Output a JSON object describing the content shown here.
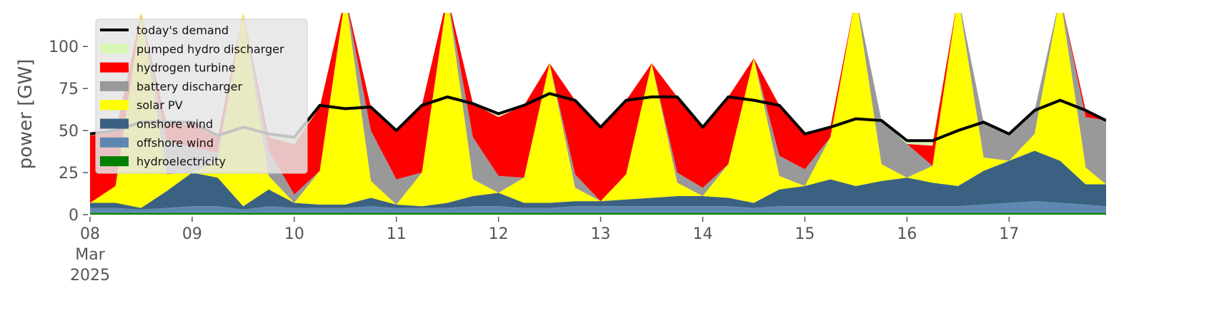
{
  "chart_data": {
    "type": "stacked_area",
    "ylabel": "power [GW]",
    "xlim": [
      8,
      17.95
    ],
    "ylim": [
      0,
      120
    ],
    "xticks": [
      {
        "value": 8,
        "label": "08\nMar\n2025"
      },
      {
        "value": 9,
        "label": "09"
      },
      10,
      11,
      12,
      13,
      14,
      15,
      16,
      17
    ],
    "yticks": [
      0,
      25,
      50,
      75,
      100
    ],
    "legend": "upper left",
    "x": [
      8.0,
      8.25,
      8.5,
      8.75,
      9.0,
      9.25,
      9.5,
      9.75,
      10.0,
      10.25,
      10.5,
      10.75,
      11.0,
      11.25,
      11.5,
      11.75,
      12.0,
      12.25,
      12.5,
      12.75,
      13.0,
      13.25,
      13.5,
      13.75,
      14.0,
      14.25,
      14.5,
      14.75,
      15.0,
      15.25,
      15.5,
      15.75,
      16.0,
      16.25,
      16.5,
      16.75,
      17.0,
      17.25,
      17.5,
      17.75,
      17.95
    ],
    "series": [
      {
        "name": "today's demand",
        "type": "line",
        "color": "#000000",
        "values": [
          48,
          50,
          55,
          55,
          55,
          47,
          52,
          48,
          46,
          65,
          63,
          64,
          50,
          65,
          70,
          66,
          60,
          65,
          72,
          68,
          52,
          68,
          70,
          70,
          52,
          70,
          68,
          65,
          48,
          52,
          57,
          56,
          44,
          44,
          50,
          55,
          48,
          62,
          68,
          62,
          56
        ]
      },
      {
        "name": "pumped hydro discharger",
        "color": "#d8f7b4",
        "values": [
          1,
          1,
          0,
          1,
          1,
          1,
          0,
          2,
          4,
          1,
          0,
          0,
          0,
          0,
          0,
          0,
          2,
          0,
          0,
          0,
          0,
          0,
          0,
          0,
          0,
          0,
          0,
          0,
          0,
          0,
          0,
          0,
          2,
          3,
          0,
          0,
          0,
          0,
          0,
          0,
          0
        ]
      },
      {
        "name": "hydrogen turbine",
        "color": "#ff0000",
        "values": [
          40,
          32,
          0,
          10,
          14,
          9,
          0,
          8,
          30,
          38,
          0,
          14,
          29,
          40,
          0,
          20,
          35,
          43,
          0,
          44,
          44,
          44,
          0,
          45,
          36,
          40,
          0,
          30,
          21,
          6,
          0,
          0,
          0,
          12,
          0,
          0,
          0,
          0,
          0,
          4,
          0
        ]
      },
      {
        "name": "battery discharger",
        "color": "#999999",
        "values": [
          0,
          0,
          0,
          20,
          15,
          5,
          0,
          15,
          5,
          0,
          0,
          30,
          15,
          0,
          0,
          25,
          10,
          0,
          0,
          8,
          0,
          0,
          0,
          6,
          5,
          0,
          0,
          12,
          10,
          0,
          0,
          26,
          20,
          0,
          0,
          21,
          16,
          14,
          0,
          30,
          38
        ]
      },
      {
        "name": "solar PV",
        "color": "#ffff00",
        "values": [
          0,
          10,
          116,
          10,
          0,
          10,
          115,
          8,
          0,
          20,
          124,
          10,
          0,
          20,
          123,
          10,
          0,
          15,
          83,
          8,
          0,
          15,
          80,
          8,
          0,
          20,
          86,
          8,
          0,
          25,
          113,
          10,
          0,
          10,
          113,
          8,
          0,
          10,
          98,
          10,
          0
        ]
      },
      {
        "name": "onshore wind",
        "color": "#3b6182",
        "values": [
          3,
          3,
          1,
          10,
          20,
          17,
          2,
          10,
          3,
          2,
          2,
          5,
          2,
          1,
          3,
          6,
          8,
          3,
          3,
          3,
          3,
          4,
          5,
          6,
          6,
          5,
          3,
          10,
          12,
          16,
          12,
          15,
          17,
          14,
          12,
          20,
          25,
          30,
          25,
          12,
          13
        ]
      },
      {
        "name": "offshore wind",
        "color": "#5f88b0",
        "values": [
          3,
          3,
          2,
          3,
          4,
          4,
          2,
          4,
          3,
          3,
          3,
          4,
          3,
          3,
          3,
          4,
          4,
          3,
          3,
          4,
          4,
          4,
          4,
          4,
          4,
          4,
          3,
          4,
          4,
          4,
          4,
          4,
          4,
          4,
          4,
          5,
          6,
          7,
          6,
          5,
          4
        ]
      },
      {
        "name": "hydroelectricity",
        "color": "#008000",
        "values": [
          1,
          1,
          1,
          1,
          1,
          1,
          1,
          1,
          1,
          1,
          1,
          1,
          1,
          1,
          1,
          1,
          1,
          1,
          1,
          1,
          1,
          1,
          1,
          1,
          1,
          1,
          1,
          1,
          1,
          1,
          1,
          1,
          1,
          1,
          1,
          1,
          1,
          1,
          1,
          1,
          1
        ]
      }
    ]
  }
}
